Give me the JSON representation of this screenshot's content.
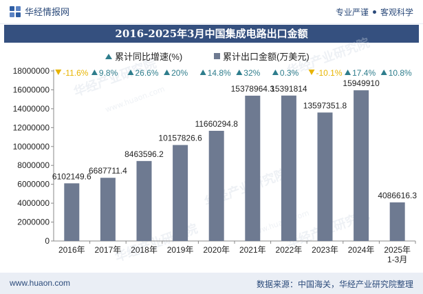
{
  "header": {
    "brand": "华经情报网",
    "tagline_left": "专业严谨",
    "tagline_right": "客观科学"
  },
  "title": "2016-2025年3月中国集成电路出口金额",
  "legend": {
    "growth": "累计同比增速(%)",
    "exports": "累计出口金额(万美元)"
  },
  "watermark": {
    "cn": "华经产业研究院",
    "url": "www.huaon.com"
  },
  "footer": {
    "url": "www.huaon.com",
    "source": "数据来源：中国海关，华经产业研究院整理"
  },
  "colors": {
    "bar": "#6e7a91",
    "up": "#2e7d8c",
    "down": "#e8b400",
    "title_bg": "#35507f"
  },
  "chart_data": {
    "type": "bar",
    "categories": [
      "2016年",
      "2017年",
      "2018年",
      "2019年",
      "2020年",
      "2021年",
      "2022年",
      "2023年",
      "2024年",
      "2025年 1-3月"
    ],
    "category_lines": [
      [
        "2016年"
      ],
      [
        "2017年"
      ],
      [
        "2018年"
      ],
      [
        "2019年"
      ],
      [
        "2020年"
      ],
      [
        "2021年"
      ],
      [
        "2022年"
      ],
      [
        "2023年"
      ],
      [
        "2024年"
      ],
      [
        "2025年",
        "1-3月"
      ]
    ],
    "series": [
      {
        "name": "累计出口金额(万美元)",
        "values": [
          6102149.6,
          6687711.4,
          8463596.2,
          10157826.6,
          11660294.8,
          15378964.3,
          15391814,
          13597351.8,
          15949910,
          4086616.3
        ],
        "labels": [
          "6102149.6",
          "6687711.4",
          "8463596.2",
          "10157826.6",
          "11660294.8",
          "15378964.3",
          "15391814",
          "13597351.8",
          "15949910",
          "4086616.3"
        ]
      },
      {
        "name": "累计同比增速(%)",
        "values": [
          -11.6,
          9.8,
          26.6,
          20,
          14.8,
          32,
          0.3,
          -10.1,
          17.4,
          10.8
        ],
        "labels": [
          "-11.6%",
          "9.8%",
          "26.6%",
          "20%",
          "14.8%",
          "32%",
          "0.3%",
          "-10.1%",
          "17.4%",
          "10.8%"
        ]
      }
    ],
    "ylim": [
      0,
      18000000
    ],
    "yticks": [
      "0",
      "2000000",
      "4000000",
      "6000000",
      "8000000",
      "10000000",
      "12000000",
      "14000000",
      "16000000",
      "18000000"
    ],
    "xlabel": "",
    "ylabel": "",
    "grid": false,
    "legend_position": "top-center"
  }
}
